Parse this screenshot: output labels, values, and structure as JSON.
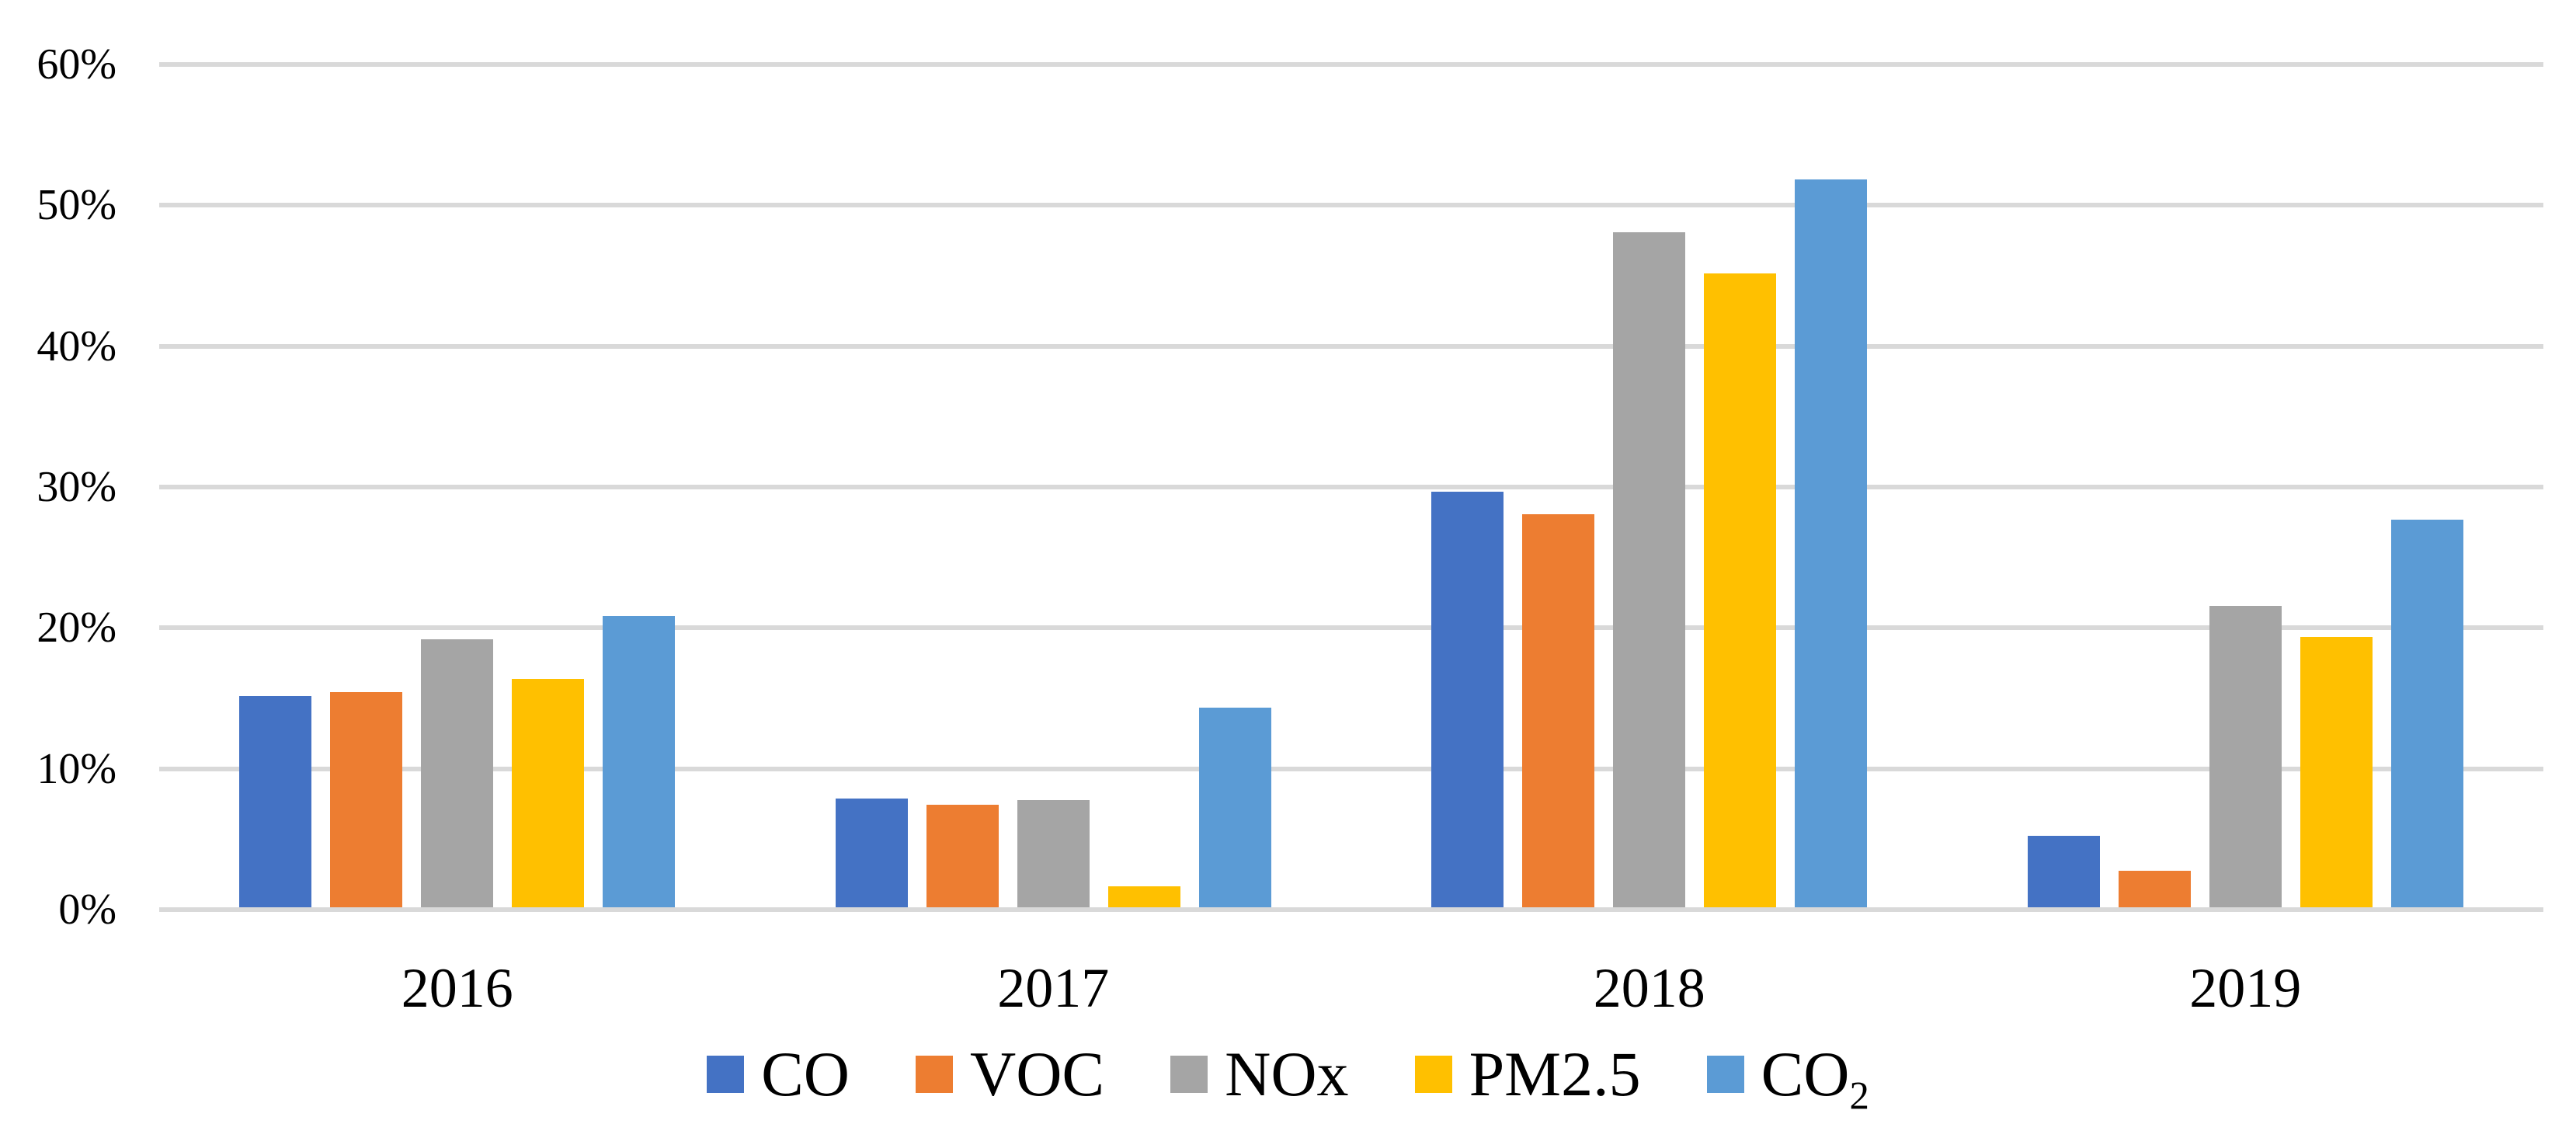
{
  "chart_data": {
    "type": "bar",
    "title": "",
    "categories": [
      "2016",
      "2017",
      "2018",
      "2019"
    ],
    "series": [
      {
        "label": "CO",
        "color": "#4472C4",
        "values": [
          15.0,
          7.7,
          29.5,
          5.1
        ]
      },
      {
        "label": "VOC",
        "color": "#ED7D31",
        "values": [
          15.3,
          7.3,
          27.9,
          2.6
        ]
      },
      {
        "label": "NOx",
        "color": "#A5A5A5",
        "values": [
          19.0,
          7.6,
          47.9,
          21.4
        ]
      },
      {
        "label": "PM2.5",
        "color": "#FFC000",
        "values": [
          16.2,
          1.5,
          45.0,
          19.2
        ]
      },
      {
        "label": "CO",
        "label_subscript": "2",
        "color": "#5B9BD5",
        "values": [
          20.7,
          14.2,
          51.7,
          27.5
        ]
      }
    ],
    "unit": "%",
    "y_axis": {
      "min": 0,
      "max": 60,
      "step": 10,
      "tick_labels": [
        "0%",
        "10%",
        "20%",
        "30%",
        "40%",
        "50%",
        "60%"
      ]
    },
    "grid": true,
    "gridline_color": "#D9D9D9",
    "background_color": "#FFFFFF",
    "text_color": "#000000",
    "legend_position": "bottom",
    "xlabel": "",
    "ylabel": ""
  }
}
